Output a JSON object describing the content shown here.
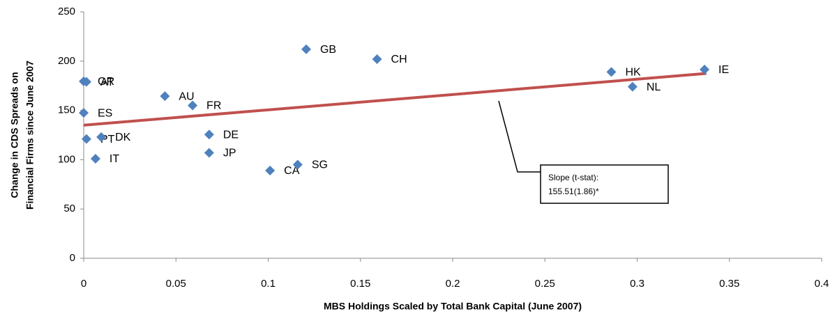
{
  "chart_data": {
    "type": "scatter",
    "xlabel": "MBS Holdings Scaled by Total Bank Capital (June 2007)",
    "ylabel": [
      "Change in CDS Spreads on",
      "Financial Firms since June 2007"
    ],
    "xlim": [
      0,
      0.4
    ],
    "xticks": [
      0,
      0.05,
      0.1,
      0.15,
      0.2,
      0.25,
      0.3,
      0.35,
      0.4
    ],
    "ylim": [
      0,
      250
    ],
    "yticks": [
      0,
      50,
      100,
      150,
      200,
      250
    ],
    "grid": false,
    "series": [
      {
        "color": "#4f81bd",
        "labels": [
          "GR",
          "AT",
          "AU",
          "FR",
          "ES",
          "DE",
          "JP",
          "PT",
          "DK",
          "IT",
          "CA",
          "SG",
          "GB",
          "CH",
          "HK",
          "NL",
          "IE"
        ],
        "x": [
          0.0,
          0.0015,
          0.044,
          0.059,
          0.0,
          0.068,
          0.068,
          0.0015,
          0.0095,
          0.0064,
          0.101,
          0.116,
          0.1206,
          0.159,
          0.286,
          0.2975,
          0.3365
        ],
        "values": [
          179.5,
          179,
          164.5,
          155,
          147.5,
          125.5,
          107,
          121,
          123,
          101,
          89,
          95,
          212,
          202,
          189,
          174,
          191.5
        ]
      }
    ],
    "trendline": {
      "color": "#c0504d",
      "x": [
        0,
        0.3375
      ],
      "values": [
        135,
        187.5
      ]
    },
    "annotation": [
      "Slope (t-stat):",
      "155.51(1.86)*"
    ]
  }
}
